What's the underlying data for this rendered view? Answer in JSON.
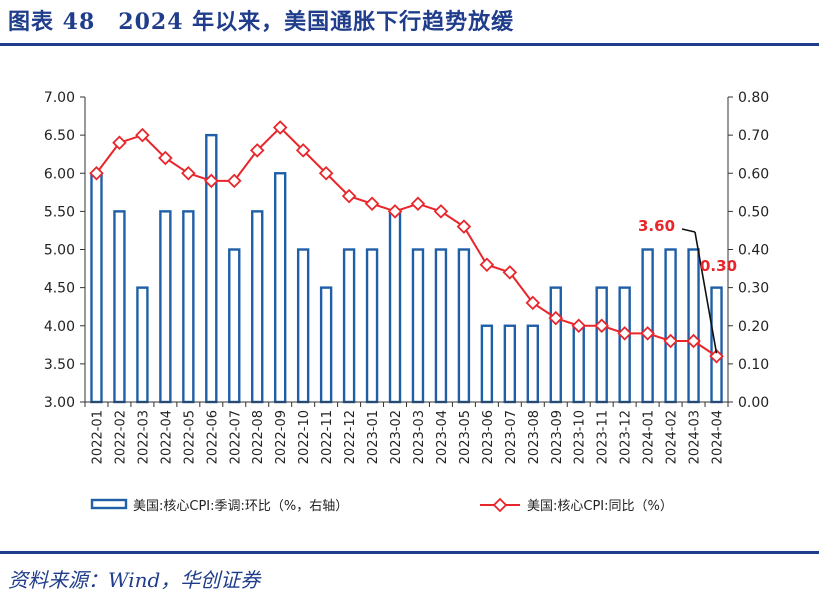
{
  "header": {
    "title": "图表 48　2024 年以来，美国通胀下行趋势放缓"
  },
  "footer": {
    "source": "资料来源：Wind，华创证券"
  },
  "chart_data": {
    "type": "bar",
    "categories": [
      "2022-01",
      "2022-02",
      "2022-03",
      "2022-04",
      "2022-05",
      "2022-06",
      "2022-07",
      "2022-08",
      "2022-09",
      "2022-10",
      "2022-11",
      "2022-12",
      "2023-01",
      "2023-02",
      "2023-03",
      "2023-04",
      "2023-05",
      "2023-06",
      "2023-07",
      "2023-08",
      "2023-09",
      "2023-10",
      "2023-11",
      "2023-12",
      "2024-01",
      "2024-02",
      "2024-03",
      "2024-04"
    ],
    "series": [
      {
        "name": "美国:核心CPI:季调:环比（%，右轴）",
        "type": "bar",
        "axis": "right",
        "color": "#1f5fa8",
        "values": [
          0.6,
          0.5,
          0.3,
          0.5,
          0.5,
          0.7,
          0.4,
          0.5,
          0.6,
          0.4,
          0.3,
          0.4,
          0.4,
          0.5,
          0.4,
          0.4,
          0.4,
          0.2,
          0.2,
          0.2,
          0.3,
          0.2,
          0.3,
          0.3,
          0.4,
          0.4,
          0.4,
          0.3
        ]
      },
      {
        "name": "美国:核心CPI:同比（%）",
        "type": "line",
        "axis": "left",
        "color": "#e8262b",
        "marker": "diamond",
        "values": [
          6.0,
          6.4,
          6.5,
          6.2,
          6.0,
          5.9,
          5.9,
          6.3,
          6.6,
          6.3,
          6.0,
          5.7,
          5.6,
          5.5,
          5.6,
          5.5,
          5.3,
          4.8,
          4.7,
          4.3,
          4.1,
          4.0,
          4.0,
          3.9,
          3.9,
          3.8,
          3.8,
          3.6
        ]
      }
    ],
    "y_left": {
      "min": 3.0,
      "max": 7.0,
      "ticks": [
        "3.00",
        "3.50",
        "4.00",
        "4.50",
        "5.00",
        "5.50",
        "6.00",
        "6.50",
        "7.00"
      ]
    },
    "y_right": {
      "min": 0.0,
      "max": 0.8,
      "ticks": [
        "0.00",
        "0.10",
        "0.20",
        "0.30",
        "0.40",
        "0.50",
        "0.60",
        "0.70",
        "0.80"
      ]
    },
    "annotations": [
      {
        "text": "3.60",
        "series": 1,
        "index": 27
      },
      {
        "text": "0.30",
        "series": 0,
        "index": 27
      }
    ],
    "legend_position": "bottom",
    "grid": false
  }
}
